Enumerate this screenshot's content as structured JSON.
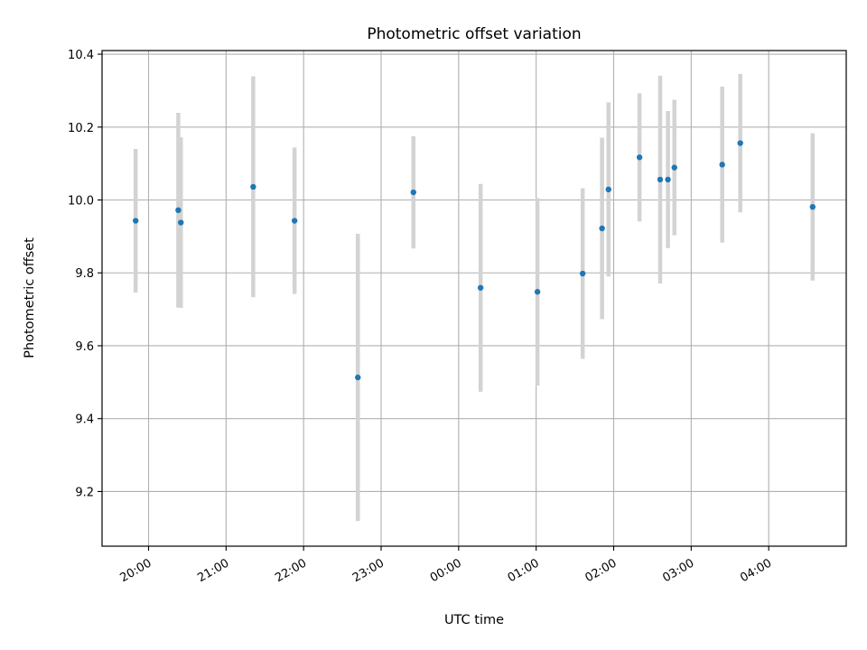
{
  "chart_data": {
    "type": "scatter",
    "title": "Photometric offset variation",
    "xlabel": "UTC time",
    "ylabel": "Photometric offset",
    "x_tick_labels": [
      "20:00",
      "21:00",
      "22:00",
      "23:00",
      "00:00",
      "01:00",
      "02:00",
      "03:00",
      "04:00"
    ],
    "y_tick_labels": [
      "9.2",
      "9.4",
      "9.6",
      "9.8",
      "10.0",
      "10.2",
      "10.4"
    ],
    "grid": true,
    "legend": "none",
    "xlim": [
      "19:24",
      "05:00"
    ],
    "ylim": [
      9.05,
      10.41
    ],
    "series": [
      {
        "marker_color": "#1f77b4",
        "errorbar_color": "#d3d3d3",
        "points": [
          {
            "t": "19:50",
            "y": 9.943,
            "err": 0.197
          },
          {
            "t": "20:23",
            "y": 9.972,
            "err": 0.267
          },
          {
            "t": "20:25",
            "y": 9.938,
            "err": 0.234
          },
          {
            "t": "21:21",
            "y": 10.036,
            "err": 0.303
          },
          {
            "t": "21:53",
            "y": 9.943,
            "err": 0.201
          },
          {
            "t": "22:42",
            "y": 9.513,
            "err": 0.394
          },
          {
            "t": "23:25",
            "y": 10.021,
            "err": 0.154
          },
          {
            "t": "00:17",
            "y": 9.759,
            "err": 0.285
          },
          {
            "t": "01:01",
            "y": 9.748,
            "err": 0.257
          },
          {
            "t": "01:36",
            "y": 9.798,
            "err": 0.234
          },
          {
            "t": "01:51",
            "y": 9.922,
            "err": 0.249
          },
          {
            "t": "01:56",
            "y": 10.029,
            "err": 0.239
          },
          {
            "t": "02:20",
            "y": 10.117,
            "err": 0.176
          },
          {
            "t": "02:36",
            "y": 10.056,
            "err": 0.285
          },
          {
            "t": "02:42",
            "y": 10.056,
            "err": 0.188
          },
          {
            "t": "02:47",
            "y": 10.089,
            "err": 0.186
          },
          {
            "t": "03:24",
            "y": 10.097,
            "err": 0.214
          },
          {
            "t": "03:38",
            "y": 10.156,
            "err": 0.19
          },
          {
            "t": "04:34",
            "y": 9.981,
            "err": 0.202
          }
        ]
      }
    ]
  }
}
